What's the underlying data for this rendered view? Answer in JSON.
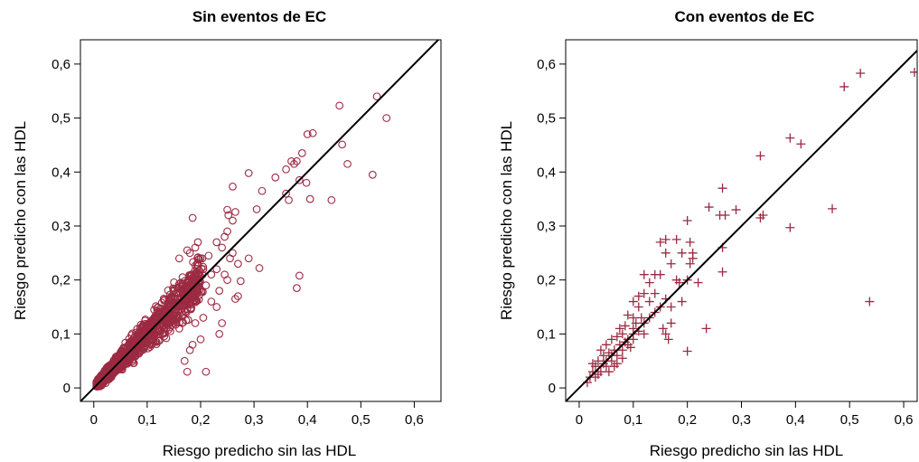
{
  "colors": {
    "marker": "#9b2a42",
    "frame": "#000000",
    "refline": "#000000"
  },
  "chart_data": [
    {
      "type": "scatter",
      "title": "Sin eventos de EC",
      "xlabel": "Riesgo predicho sin las HDL",
      "ylabel": "Riesgo predicho con las HDL",
      "xlim": [
        -0.025,
        0.65
      ],
      "ylim": [
        -0.025,
        0.645
      ],
      "xticks": [
        0,
        0.1,
        0.2,
        0.3,
        0.4,
        0.5,
        0.6
      ],
      "yticks": [
        0,
        0.1,
        0.2,
        0.3,
        0.4,
        0.5,
        0.6
      ],
      "xtick_labels": [
        "0",
        "0,1",
        "0,2",
        "0,3",
        "0,4",
        "0,5",
        "0,6"
      ],
      "ytick_labels": [
        "0",
        "0,1",
        "0,2",
        "0,3",
        "0,4",
        "0,5",
        "0,6"
      ],
      "marker": "circle",
      "reference_line": "y = x",
      "dense_cloud": {
        "x_range": [
          0.0,
          0.2
        ],
        "y_range": [
          0.0,
          0.2
        ],
        "note_points": 1200
      },
      "points": [
        [
          0.53,
          0.54
        ],
        [
          0.548,
          0.5
        ],
        [
          0.46,
          0.523
        ],
        [
          0.4,
          0.47
        ],
        [
          0.41,
          0.472
        ],
        [
          0.465,
          0.451
        ],
        [
          0.475,
          0.415
        ],
        [
          0.522,
          0.395
        ],
        [
          0.445,
          0.348
        ],
        [
          0.365,
          0.348
        ],
        [
          0.385,
          0.208
        ],
        [
          0.38,
          0.185
        ],
        [
          0.31,
          0.222
        ],
        [
          0.29,
          0.398
        ],
        [
          0.315,
          0.365
        ],
        [
          0.36,
          0.36
        ],
        [
          0.37,
          0.42
        ],
        [
          0.375,
          0.415
        ],
        [
          0.38,
          0.42
        ],
        [
          0.39,
          0.435
        ],
        [
          0.398,
          0.38
        ],
        [
          0.405,
          0.35
        ],
        [
          0.34,
          0.39
        ],
        [
          0.385,
          0.385
        ],
        [
          0.36,
          0.405
        ],
        [
          0.305,
          0.331
        ],
        [
          0.26,
          0.373
        ],
        [
          0.25,
          0.33
        ],
        [
          0.252,
          0.32
        ],
        [
          0.26,
          0.31
        ],
        [
          0.265,
          0.326
        ],
        [
          0.25,
          0.29
        ],
        [
          0.245,
          0.28
        ],
        [
          0.26,
          0.25
        ],
        [
          0.27,
          0.23
        ],
        [
          0.275,
          0.198
        ],
        [
          0.27,
          0.17
        ],
        [
          0.265,
          0.165
        ],
        [
          0.235,
          0.1
        ],
        [
          0.24,
          0.12
        ],
        [
          0.21,
          0.03
        ],
        [
          0.235,
          0.18
        ],
        [
          0.23,
          0.22
        ],
        [
          0.22,
          0.21
        ],
        [
          0.185,
          0.315
        ],
        [
          0.175,
          0.255
        ],
        [
          0.19,
          0.26
        ],
        [
          0.2,
          0.24
        ],
        [
          0.195,
          0.27
        ],
        [
          0.18,
          0.25
        ],
        [
          0.16,
          0.24
        ],
        [
          0.205,
          0.13
        ],
        [
          0.19,
          0.12
        ],
        [
          0.2,
          0.09
        ],
        [
          0.185,
          0.08
        ],
        [
          0.17,
          0.05
        ],
        [
          0.175,
          0.03
        ],
        [
          0.18,
          0.07
        ],
        [
          0.16,
          0.11
        ],
        [
          0.21,
          0.19
        ],
        [
          0.23,
          0.15
        ],
        [
          0.22,
          0.16
        ],
        [
          0.24,
          0.26
        ],
        [
          0.215,
          0.245
        ],
        [
          0.205,
          0.22
        ],
        [
          0.29,
          0.24
        ],
        [
          0.255,
          0.24
        ],
        [
          0.23,
          0.27
        ],
        [
          0.245,
          0.21
        ],
        [
          0.25,
          0.2
        ]
      ]
    },
    {
      "type": "scatter",
      "title": "Con eventos de EC",
      "xlabel": "Riesgo predicho sin las HDL",
      "ylabel": "Riesgo predicho con las HDL",
      "xlim": [
        -0.025,
        0.625
      ],
      "ylim": [
        -0.025,
        0.645
      ],
      "xticks": [
        0,
        0.1,
        0.2,
        0.3,
        0.4,
        0.5,
        0.6
      ],
      "yticks": [
        0,
        0.1,
        0.2,
        0.3,
        0.4,
        0.5,
        0.6
      ],
      "xtick_labels": [
        "0",
        "0,1",
        "0,2",
        "0,3",
        "0,4",
        "0,5",
        "0,6"
      ],
      "ytick_labels": [
        "0",
        "0,1",
        "0,2",
        "0,3",
        "0,4",
        "0,5",
        "0,6"
      ],
      "marker": "plus",
      "reference_line": "y = x",
      "points": [
        [
          0.62,
          0.585
        ],
        [
          0.52,
          0.583
        ],
        [
          0.49,
          0.558
        ],
        [
          0.39,
          0.463
        ],
        [
          0.41,
          0.452
        ],
        [
          0.335,
          0.43
        ],
        [
          0.468,
          0.332
        ],
        [
          0.39,
          0.297
        ],
        [
          0.537,
          0.16
        ],
        [
          0.34,
          0.32
        ],
        [
          0.335,
          0.315
        ],
        [
          0.29,
          0.33
        ],
        [
          0.265,
          0.37
        ],
        [
          0.24,
          0.335
        ],
        [
          0.26,
          0.32
        ],
        [
          0.27,
          0.32
        ],
        [
          0.265,
          0.26
        ],
        [
          0.265,
          0.215
        ],
        [
          0.235,
          0.11
        ],
        [
          0.2,
          0.068
        ],
        [
          0.21,
          0.24
        ],
        [
          0.205,
          0.23
        ],
        [
          0.21,
          0.25
        ],
        [
          0.205,
          0.27
        ],
        [
          0.2,
          0.31
        ],
        [
          0.18,
          0.275
        ],
        [
          0.16,
          0.275
        ],
        [
          0.17,
          0.23
        ],
        [
          0.18,
          0.2
        ],
        [
          0.185,
          0.195
        ],
        [
          0.19,
          0.25
        ],
        [
          0.2,
          0.2
        ],
        [
          0.22,
          0.195
        ],
        [
          0.15,
          0.27
        ],
        [
          0.16,
          0.25
        ],
        [
          0.14,
          0.21
        ],
        [
          0.15,
          0.21
        ],
        [
          0.12,
          0.21
        ],
        [
          0.13,
          0.195
        ],
        [
          0.12,
          0.175
        ],
        [
          0.13,
          0.16
        ],
        [
          0.1,
          0.16
        ],
        [
          0.11,
          0.15
        ],
        [
          0.14,
          0.175
        ],
        [
          0.16,
          0.165
        ],
        [
          0.15,
          0.15
        ],
        [
          0.17,
          0.15
        ],
        [
          0.19,
          0.16
        ],
        [
          0.17,
          0.12
        ],
        [
          0.16,
          0.1
        ],
        [
          0.165,
          0.09
        ],
        [
          0.155,
          0.11
        ],
        [
          0.12,
          0.12
        ],
        [
          0.1,
          0.13
        ],
        [
          0.09,
          0.135
        ],
        [
          0.11,
          0.105
        ],
        [
          0.12,
          0.1
        ],
        [
          0.1,
          0.1
        ],
        [
          0.085,
          0.115
        ],
        [
          0.08,
          0.1
        ],
        [
          0.09,
          0.09
        ],
        [
          0.075,
          0.08
        ],
        [
          0.07,
          0.095
        ],
        [
          0.06,
          0.09
        ],
        [
          0.065,
          0.07
        ],
        [
          0.055,
          0.065
        ],
        [
          0.05,
          0.08
        ],
        [
          0.045,
          0.06
        ],
        [
          0.04,
          0.07
        ],
        [
          0.035,
          0.05
        ],
        [
          0.03,
          0.04
        ],
        [
          0.025,
          0.03
        ],
        [
          0.02,
          0.02
        ],
        [
          0.015,
          0.01
        ],
        [
          0.03,
          0.02
        ],
        [
          0.04,
          0.03
        ],
        [
          0.05,
          0.04
        ],
        [
          0.06,
          0.05
        ],
        [
          0.07,
          0.06
        ],
        [
          0.08,
          0.07
        ],
        [
          0.09,
          0.08
        ],
        [
          0.1,
          0.09
        ],
        [
          0.105,
          0.12
        ],
        [
          0.115,
          0.13
        ],
        [
          0.075,
          0.11
        ],
        [
          0.085,
          0.085
        ],
        [
          0.095,
          0.075
        ],
        [
          0.045,
          0.045
        ],
        [
          0.055,
          0.03
        ],
        [
          0.065,
          0.04
        ],
        [
          0.035,
          0.025
        ],
        [
          0.025,
          0.045
        ],
        [
          0.05,
          0.05
        ],
        [
          0.06,
          0.06
        ],
        [
          0.07,
          0.045
        ],
        [
          0.08,
          0.055
        ],
        [
          0.13,
          0.13
        ],
        [
          0.14,
          0.14
        ],
        [
          0.11,
          0.17
        ],
        [
          0.1,
          0.11
        ]
      ]
    }
  ]
}
